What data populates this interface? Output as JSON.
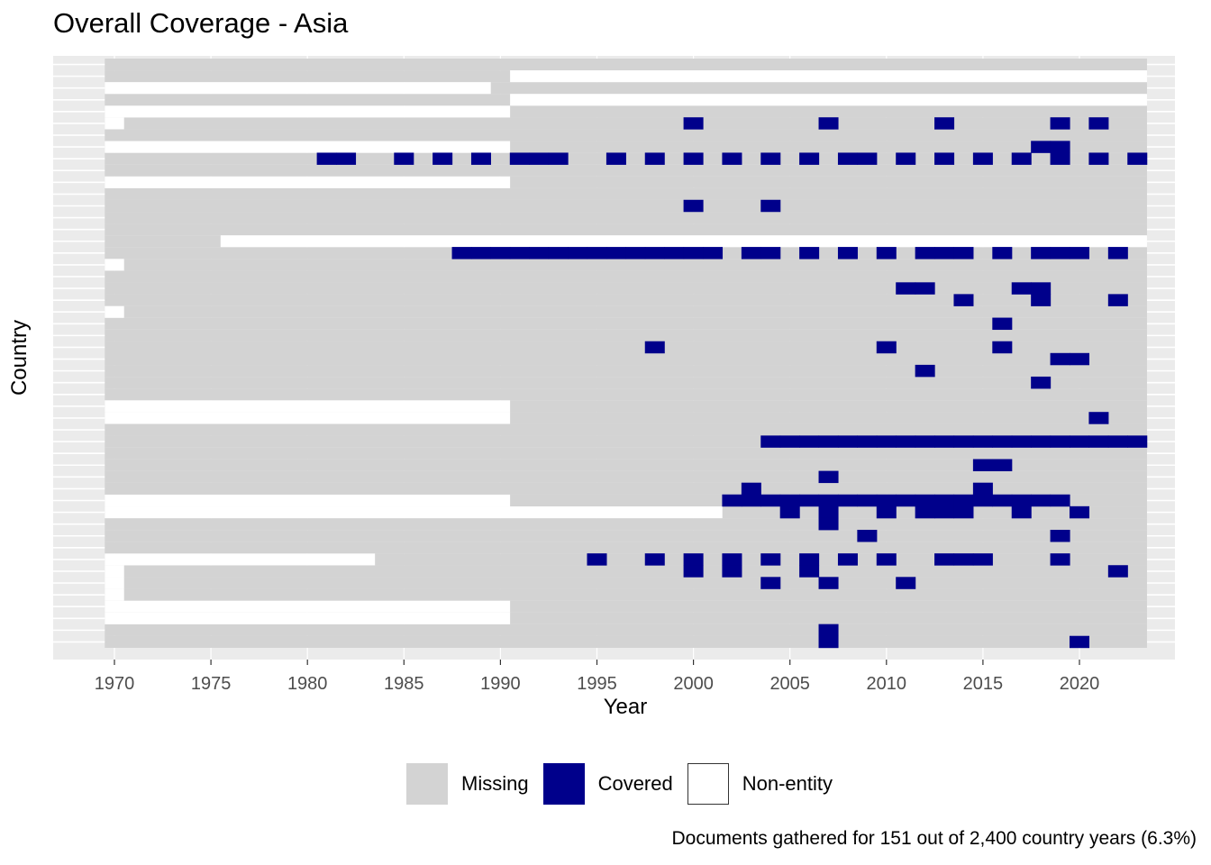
{
  "chart_data": {
    "type": "heatmap",
    "title": "Overall Coverage - Asia",
    "xlabel": "Year",
    "ylabel": "Country",
    "x_range": [
      1970,
      2023
    ],
    "x_ticks": [
      1970,
      1975,
      1980,
      1985,
      1990,
      1995,
      2000,
      2005,
      2010,
      2015,
      2020
    ],
    "rows": 50,
    "legend": {
      "position": "bottom",
      "entries": [
        {
          "label": "Missing",
          "color": "#d3d3d3"
        },
        {
          "label": "Covered",
          "color": "#00008b"
        },
        {
          "label": "Non-entity",
          "color": "#ffffff"
        }
      ]
    },
    "caption": "Documents gathered for 151 out of 2,400 country years (6.3%)",
    "non_entity": [
      {
        "row": 1,
        "from": 1991,
        "to": 2023
      },
      {
        "row": 2,
        "from": 1970,
        "to": 1989
      },
      {
        "row": 3,
        "from": 1991,
        "to": 2023
      },
      {
        "row": 4,
        "from": 1970,
        "to": 1990
      },
      {
        "row": 5,
        "from": 1970,
        "to": 1970
      },
      {
        "row": 7,
        "from": 1970,
        "to": 1990
      },
      {
        "row": 10,
        "from": 1970,
        "to": 1990
      },
      {
        "row": 15,
        "from": 1976,
        "to": 2023
      },
      {
        "row": 17,
        "from": 1970,
        "to": 1970
      },
      {
        "row": 21,
        "from": 1970,
        "to": 1970
      },
      {
        "row": 29,
        "from": 1970,
        "to": 1990
      },
      {
        "row": 30,
        "from": 1970,
        "to": 1990
      },
      {
        "row": 37,
        "from": 1970,
        "to": 1990
      },
      {
        "row": 38,
        "from": 1970,
        "to": 2001
      },
      {
        "row": 42,
        "from": 1970,
        "to": 1983
      },
      {
        "row": 43,
        "from": 1970,
        "to": 1970
      },
      {
        "row": 44,
        "from": 1970,
        "to": 1970
      },
      {
        "row": 45,
        "from": 1970,
        "to": 1970
      },
      {
        "row": 46,
        "from": 1970,
        "to": 1990
      },
      {
        "row": 47,
        "from": 1970,
        "to": 1990
      }
    ],
    "covered": [
      {
        "row": 5,
        "years": [
          2000,
          2007,
          2013,
          2019,
          2021
        ]
      },
      {
        "row": 7,
        "years": [
          2018,
          2019
        ]
      },
      {
        "row": 8,
        "years": [
          1981,
          1982,
          1985,
          1987,
          1989,
          1991,
          1992,
          1993,
          1996,
          1998,
          2000,
          2002,
          2004,
          2006,
          2008,
          2009,
          2011,
          2013,
          2015,
          2017,
          2019,
          2021,
          2023
        ]
      },
      {
        "row": 12,
        "years": [
          2000,
          2004
        ]
      },
      {
        "row": 16,
        "years": [
          1988,
          1989,
          1990,
          1991,
          1992,
          1993,
          1994,
          1995,
          1996,
          1997,
          1998,
          1999,
          2000,
          2001,
          2003,
          2004,
          2006,
          2008,
          2010,
          2012,
          2013,
          2014,
          2016,
          2018,
          2019,
          2020,
          2022
        ]
      },
      {
        "row": 19,
        "years": [
          2011,
          2012,
          2017,
          2018
        ]
      },
      {
        "row": 20,
        "years": [
          2014,
          2018,
          2022
        ]
      },
      {
        "row": 22,
        "years": [
          2016
        ]
      },
      {
        "row": 24,
        "years": [
          1998,
          2010,
          2016
        ]
      },
      {
        "row": 25,
        "years": [
          2019,
          2020
        ]
      },
      {
        "row": 26,
        "years": [
          2012
        ]
      },
      {
        "row": 27,
        "years": [
          2018
        ]
      },
      {
        "row": 30,
        "years": [
          2021
        ]
      },
      {
        "row": 32,
        "years": [
          2004,
          2005,
          2006,
          2007,
          2008,
          2009,
          2010,
          2011,
          2012,
          2013,
          2014,
          2015,
          2016,
          2017,
          2018,
          2019,
          2020,
          2021,
          2022,
          2023
        ]
      },
      {
        "row": 34,
        "years": [
          2015,
          2016
        ]
      },
      {
        "row": 35,
        "years": [
          2007
        ]
      },
      {
        "row": 36,
        "years": [
          2003,
          2015
        ]
      },
      {
        "row": 37,
        "years": [
          2002,
          2003,
          2004,
          2005,
          2006,
          2007,
          2008,
          2009,
          2010,
          2011,
          2012,
          2013,
          2014,
          2015,
          2016,
          2017,
          2018,
          2019
        ]
      },
      {
        "row": 38,
        "years": [
          2005,
          2007,
          2010,
          2012,
          2013,
          2014,
          2017,
          2020
        ]
      },
      {
        "row": 39,
        "years": [
          2007
        ]
      },
      {
        "row": 40,
        "years": [
          2009,
          2019
        ]
      },
      {
        "row": 42,
        "years": [
          1995,
          1998,
          2000,
          2002,
          2004,
          2006,
          2008,
          2010,
          2013,
          2014,
          2015,
          2019
        ]
      },
      {
        "row": 43,
        "years": [
          2000,
          2002,
          2006,
          2022
        ]
      },
      {
        "row": 44,
        "years": [
          2004,
          2007,
          2011
        ]
      },
      {
        "row": 48,
        "years": [
          2007
        ]
      },
      {
        "row": 49,
        "years": [
          2007,
          2020
        ]
      }
    ]
  }
}
